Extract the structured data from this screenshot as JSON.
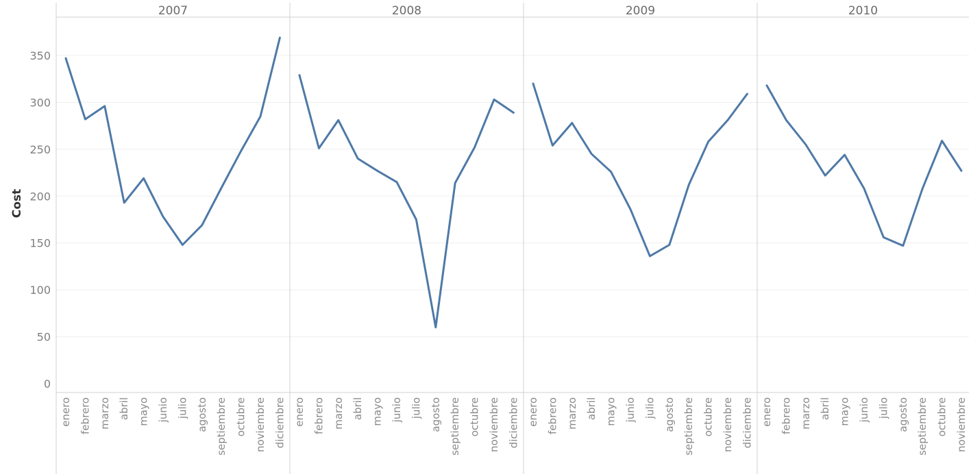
{
  "chart_data": {
    "type": "line",
    "ylabel": "Cost",
    "ylim": [
      0,
      380
    ],
    "yticks": [
      0,
      50,
      100,
      150,
      200,
      250,
      300,
      350
    ],
    "grid": true,
    "line_color": "#4e79a7",
    "panels": [
      {
        "title": "2007",
        "x": [
          "enero",
          "febrero",
          "marzo",
          "abril",
          "mayo",
          "junio",
          "julio",
          "agosto",
          "septiembre",
          "octubre",
          "noviembre",
          "diciembre"
        ],
        "values": [
          347,
          282,
          296,
          193,
          219,
          178,
          148,
          169,
          209,
          248,
          285,
          369
        ]
      },
      {
        "title": "2008",
        "x": [
          "enero",
          "febrero",
          "marzo",
          "abril",
          "mayo",
          "junio",
          "julio",
          "agosto",
          "septiembre",
          "octubre",
          "noviembre",
          "diciembre"
        ],
        "values": [
          329,
          251,
          281,
          240,
          227,
          215,
          175,
          60,
          214,
          252,
          303,
          289
        ]
      },
      {
        "title": "2009",
        "x": [
          "enero",
          "febrero",
          "marzo",
          "abril",
          "mayo",
          "junio",
          "julio",
          "agosto",
          "septiembre",
          "octubre",
          "noviembre",
          "diciembre"
        ],
        "values": [
          320,
          254,
          278,
          245,
          226,
          186,
          136,
          148,
          212,
          258,
          281,
          309
        ]
      },
      {
        "title": "2010",
        "x": [
          "enero",
          "febrero",
          "marzo",
          "abril",
          "mayo",
          "junio",
          "julio",
          "agosto",
          "septiembre",
          "octubre",
          "noviembre"
        ],
        "values": [
          318,
          281,
          255,
          222,
          244,
          208,
          156,
          147,
          208,
          259,
          227
        ]
      }
    ]
  }
}
